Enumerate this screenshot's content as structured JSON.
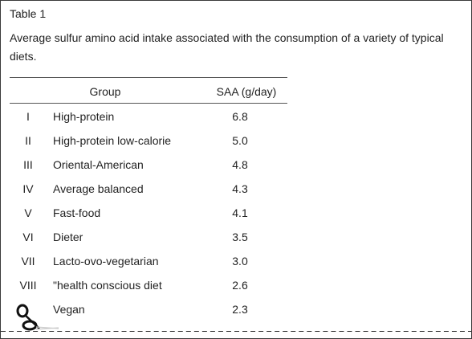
{
  "table_label": "Table 1",
  "caption": "Average sulfur amino acid intake associated with the consumption of a variety of typical diets.",
  "columns": {
    "number": "",
    "group": "Group",
    "saa": "SAA (g/day)"
  },
  "rows": [
    {
      "num": "I",
      "group": "High-protein",
      "saa": "6.8"
    },
    {
      "num": "II",
      "group": "High-protein low-calorie",
      "saa": "5.0"
    },
    {
      "num": "III",
      "group": "Oriental-American",
      "saa": "4.8"
    },
    {
      "num": "IV",
      "group": "Average balanced",
      "saa": "4.3"
    },
    {
      "num": "V",
      "group": "Fast-food",
      "saa": "4.1"
    },
    {
      "num": "VI",
      "group": "Dieter",
      "saa": "3.5"
    },
    {
      "num": "VII",
      "group": "Lacto-ovo-vegetarian",
      "saa": "3.0"
    },
    {
      "num": "VIII",
      "group": "\"health conscious diet",
      "saa": "2.6"
    },
    {
      "num": "",
      "group": "Vegan",
      "saa": "2.3"
    }
  ],
  "icons": {
    "cut": "scissors-icon"
  }
}
